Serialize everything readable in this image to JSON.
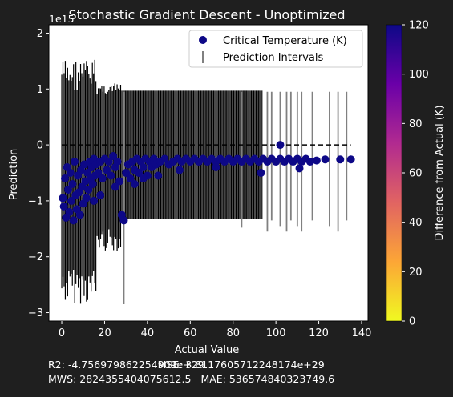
{
  "chart_data": {
    "type": "scatter",
    "title": "Stochastic Gradient Descent - Unoptimized",
    "xlabel": "Actual Value",
    "ylabel": "Prediction",
    "y_offset_text": "1e15",
    "xlim": [
      -6,
      143
    ],
    "ylim": [
      -3.15,
      2.15
    ],
    "xticks": [
      0,
      20,
      40,
      60,
      80,
      100,
      120,
      140
    ],
    "yticks": [
      -3,
      -2,
      -1,
      0,
      1,
      2
    ],
    "legend": {
      "position": "top-right",
      "entries": [
        {
          "label": "Critical Temperature (K)",
          "marker": "circle",
          "color": "#0d0887"
        },
        {
          "label": "Prediction Intervals",
          "marker": "vline",
          "color": "#808080"
        }
      ]
    },
    "reference_line": {
      "style": "dashed",
      "color": "#000000",
      "x": [
        0,
        135
      ],
      "y": [
        0,
        0
      ]
    },
    "colorbar": {
      "label": "Difference from Actual (K)",
      "range": [
        0,
        120
      ],
      "ticks": [
        0,
        20,
        40,
        60,
        80,
        100,
        120
      ],
      "colormap": "plasma_r",
      "stops": [
        "#f0f921",
        "#fca636",
        "#e16462",
        "#b12a90",
        "#6a00a8",
        "#0d0887"
      ]
    },
    "series": [
      {
        "name": "Critical Temperature (K)",
        "color": "#0d0887",
        "points": [
          {
            "x": 0.5,
            "y": -0.95
          },
          {
            "x": 1,
            "y": -1.1
          },
          {
            "x": 1.5,
            "y": -0.6
          },
          {
            "x": 2,
            "y": -1.3
          },
          {
            "x": 2.5,
            "y": -0.4
          },
          {
            "x": 3,
            "y": -0.8
          },
          {
            "x": 3.5,
            "y": -1.2
          },
          {
            "x": 4,
            "y": -0.5
          },
          {
            "x": 4.5,
            "y": -1.0
          },
          {
            "x": 5,
            "y": -0.7
          },
          {
            "x": 5.5,
            "y": -1.35
          },
          {
            "x": 6,
            "y": -0.3
          },
          {
            "x": 6.5,
            "y": -0.9
          },
          {
            "x": 7,
            "y": -1.15
          },
          {
            "x": 7.5,
            "y": -0.55
          },
          {
            "x": 8,
            "y": -0.85
          },
          {
            "x": 8.5,
            "y": -1.25
          },
          {
            "x": 9,
            "y": -0.45
          },
          {
            "x": 9.5,
            "y": -0.75
          },
          {
            "x": 10,
            "y": -1.05
          },
          {
            "x": 10.5,
            "y": -0.35
          },
          {
            "x": 11,
            "y": -0.65
          },
          {
            "x": 11.5,
            "y": -0.95
          },
          {
            "x": 12,
            "y": -0.5
          },
          {
            "x": 12.5,
            "y": -0.8
          },
          {
            "x": 13,
            "y": -0.3
          },
          {
            "x": 13.5,
            "y": -0.6
          },
          {
            "x": 14,
            "y": -0.4
          },
          {
            "x": 14.5,
            "y": -0.7
          },
          {
            "x": 15,
            "y": -0.25
          },
          {
            "x": 15.5,
            "y": -0.55
          },
          {
            "x": 16,
            "y": -0.35
          },
          {
            "x": 17,
            "y": -0.5
          },
          {
            "x": 18,
            "y": -0.3
          },
          {
            "x": 19,
            "y": -0.6
          },
          {
            "x": 20,
            "y": -0.25
          },
          {
            "x": 21,
            "y": -0.45
          },
          {
            "x": 22,
            "y": -0.3
          },
          {
            "x": 23,
            "y": -0.55
          },
          {
            "x": 24,
            "y": -0.2
          },
          {
            "x": 25,
            "y": -0.4
          },
          {
            "x": 26,
            "y": -0.3
          },
          {
            "x": 27,
            "y": -0.65
          },
          {
            "x": 28,
            "y": -1.25
          },
          {
            "x": 29,
            "y": -1.35
          },
          {
            "x": 30,
            "y": -0.5
          },
          {
            "x": 31,
            "y": -0.35
          },
          {
            "x": 32,
            "y": -0.6
          },
          {
            "x": 33,
            "y": -0.3
          },
          {
            "x": 34,
            "y": -0.45
          },
          {
            "x": 35,
            "y": -0.25
          },
          {
            "x": 36,
            "y": -0.5
          },
          {
            "x": 37,
            "y": -0.3
          },
          {
            "x": 38,
            "y": -0.4
          },
          {
            "x": 39,
            "y": -0.25
          },
          {
            "x": 40,
            "y": -0.55
          },
          {
            "x": 41,
            "y": -0.3
          },
          {
            "x": 42,
            "y": -0.4
          },
          {
            "x": 43,
            "y": -0.25
          },
          {
            "x": 44,
            "y": -0.35
          },
          {
            "x": 46,
            "y": -0.3
          },
          {
            "x": 48,
            "y": -0.25
          },
          {
            "x": 50,
            "y": -0.35
          },
          {
            "x": 52,
            "y": -0.3
          },
          {
            "x": 54,
            "y": -0.25
          },
          {
            "x": 56,
            "y": -0.3
          },
          {
            "x": 58,
            "y": -0.25
          },
          {
            "x": 60,
            "y": -0.3
          },
          {
            "x": 62,
            "y": -0.25
          },
          {
            "x": 64,
            "y": -0.3
          },
          {
            "x": 66,
            "y": -0.25
          },
          {
            "x": 68,
            "y": -0.3
          },
          {
            "x": 70,
            "y": -0.25
          },
          {
            "x": 72,
            "y": -0.3
          },
          {
            "x": 74,
            "y": -0.25
          },
          {
            "x": 76,
            "y": -0.3
          },
          {
            "x": 78,
            "y": -0.25
          },
          {
            "x": 80,
            "y": -0.3
          },
          {
            "x": 82,
            "y": -0.25
          },
          {
            "x": 84,
            "y": -0.3
          },
          {
            "x": 86,
            "y": -0.25
          },
          {
            "x": 88,
            "y": -0.3
          },
          {
            "x": 90,
            "y": -0.25
          },
          {
            "x": 92,
            "y": -0.3
          },
          {
            "x": 93,
            "y": -0.5
          },
          {
            "x": 94,
            "y": -0.25
          },
          {
            "x": 96,
            "y": -0.3
          },
          {
            "x": 98,
            "y": -0.25
          },
          {
            "x": 100,
            "y": -0.3
          },
          {
            "x": 102,
            "y": -0.25
          },
          {
            "x": 102,
            "y": 0.0
          },
          {
            "x": 104,
            "y": -0.3
          },
          {
            "x": 106,
            "y": -0.25
          },
          {
            "x": 108,
            "y": -0.3
          },
          {
            "x": 110,
            "y": -0.25
          },
          {
            "x": 111,
            "y": -0.42
          },
          {
            "x": 112,
            "y": -0.3
          },
          {
            "x": 114,
            "y": -0.25
          },
          {
            "x": 116,
            "y": -0.3
          },
          {
            "x": 119,
            "y": -0.28
          },
          {
            "x": 123,
            "y": -0.26
          },
          {
            "x": 130,
            "y": -0.26
          },
          {
            "x": 135,
            "y": -0.26
          },
          {
            "x": 55,
            "y": -0.45
          },
          {
            "x": 72,
            "y": -0.4
          },
          {
            "x": 45,
            "y": -0.55
          },
          {
            "x": 34,
            "y": -0.7
          },
          {
            "x": 38,
            "y": -0.6
          },
          {
            "x": 25,
            "y": -0.75
          },
          {
            "x": 18,
            "y": -0.9
          },
          {
            "x": 15,
            "y": -1.0
          }
        ]
      }
    ]
  },
  "metrics": {
    "r2": "R2: -4.756979862254909e+29",
    "mse": "MSE: 3.8117605712248174e+29",
    "mws": "MWS: 2824355404075612.5",
    "mae": "MAE: 536574840323749.6"
  }
}
